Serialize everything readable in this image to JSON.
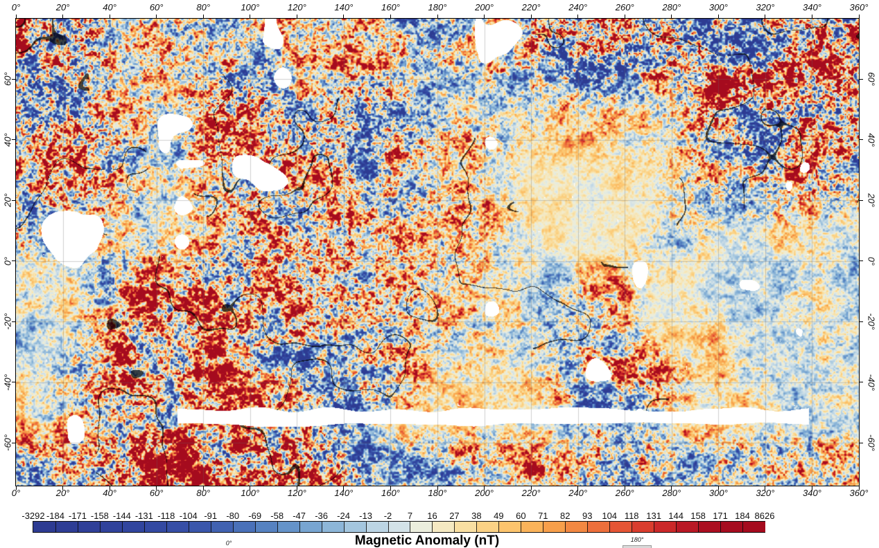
{
  "figure": {
    "colorbar_label": "Magnetic Anomaly (nT)",
    "lon_labels": [
      "0°",
      "20°",
      "40°",
      "60°",
      "80°",
      "100°",
      "120°",
      "140°",
      "160°",
      "180°",
      "200°",
      "220°",
      "240°",
      "260°",
      "280°",
      "300°",
      "320°",
      "340°",
      "360°"
    ],
    "lat_labels": [
      "60°",
      "40°",
      "20°",
      "0°",
      "-20°",
      "-40°",
      "-60°"
    ],
    "inset_labels": {
      "left": "0°",
      "right": "180°"
    },
    "colorbar": {
      "tick_labels": [
        "-3292",
        "-184",
        "-171",
        "-158",
        "-144",
        "-131",
        "-118",
        "-104",
        "-91",
        "-80",
        "-69",
        "-58",
        "-47",
        "-36",
        "-24",
        "-13",
        "-2",
        "7",
        "16",
        "27",
        "38",
        "49",
        "60",
        "71",
        "82",
        "93",
        "104",
        "118",
        "131",
        "144",
        "158",
        "171",
        "184",
        "8626"
      ],
      "segment_colors": [
        "#2d3b92",
        "#2e3d95",
        "#2f3f98",
        "#30429b",
        "#31459e",
        "#3349a2",
        "#364ea6",
        "#3a56ab",
        "#4162b1",
        "#4a71b9",
        "#5682c1",
        "#6593c9",
        "#78a5d1",
        "#8db6d8",
        "#a4c6de",
        "#bcd5e4",
        "#d3e2e8",
        "#ebeedd",
        "#f5e9c2",
        "#f9dfa2",
        "#fbd285",
        "#fcc46d",
        "#fab35a",
        "#f79f4b",
        "#f28842",
        "#ed6f3b",
        "#e55535",
        "#da3d2e",
        "#cb2829",
        "#b91825",
        "#ab0e20",
        "#a60c1f",
        "#a50b1e"
      ]
    },
    "colors": {
      "frame": "#000000",
      "map_gridline": "#6e6e6e",
      "background": "#ffffff",
      "no_data": "#ffffff"
    }
  },
  "chart_data": {
    "type": "heatmap",
    "title": "Magnetic Anomaly (nT)",
    "value_units": "nT",
    "x_axis_ticks_deg": [
      0,
      20,
      40,
      60,
      80,
      100,
      120,
      140,
      160,
      180,
      200,
      220,
      240,
      260,
      280,
      300,
      320,
      340,
      360
    ],
    "y_axis_ticks_deg": [
      60,
      40,
      20,
      0,
      -20,
      -40,
      -60
    ],
    "colorbar_tick_values": [
      -3292,
      -184,
      -171,
      -158,
      -144,
      -131,
      -118,
      -104,
      -91,
      -80,
      -69,
      -58,
      -47,
      -36,
      -24,
      -13,
      -2,
      7,
      16,
      27,
      38,
      49,
      60,
      71,
      82,
      93,
      104,
      118,
      131,
      144,
      158,
      171,
      184,
      8626
    ],
    "colorbar_colors": [
      "#2d3b92",
      "#2e3d95",
      "#2f3f98",
      "#30429b",
      "#31459e",
      "#3349a2",
      "#364ea6",
      "#3a56ab",
      "#4162b1",
      "#4a71b9",
      "#5682c1",
      "#6593c9",
      "#78a5d1",
      "#8db6d8",
      "#a4c6de",
      "#bcd5e4",
      "#d3e2e8",
      "#ebeedd",
      "#f5e9c2",
      "#f9dfa2",
      "#fbd285",
      "#fcc46d",
      "#fab35a",
      "#f79f4b",
      "#f28842",
      "#ed6f3b",
      "#e55535",
      "#da3d2e",
      "#cb2829",
      "#b91825",
      "#ab0e20",
      "#a60c1f",
      "#a50b1e"
    ],
    "legend_position": "bottom",
    "grid": true
  }
}
